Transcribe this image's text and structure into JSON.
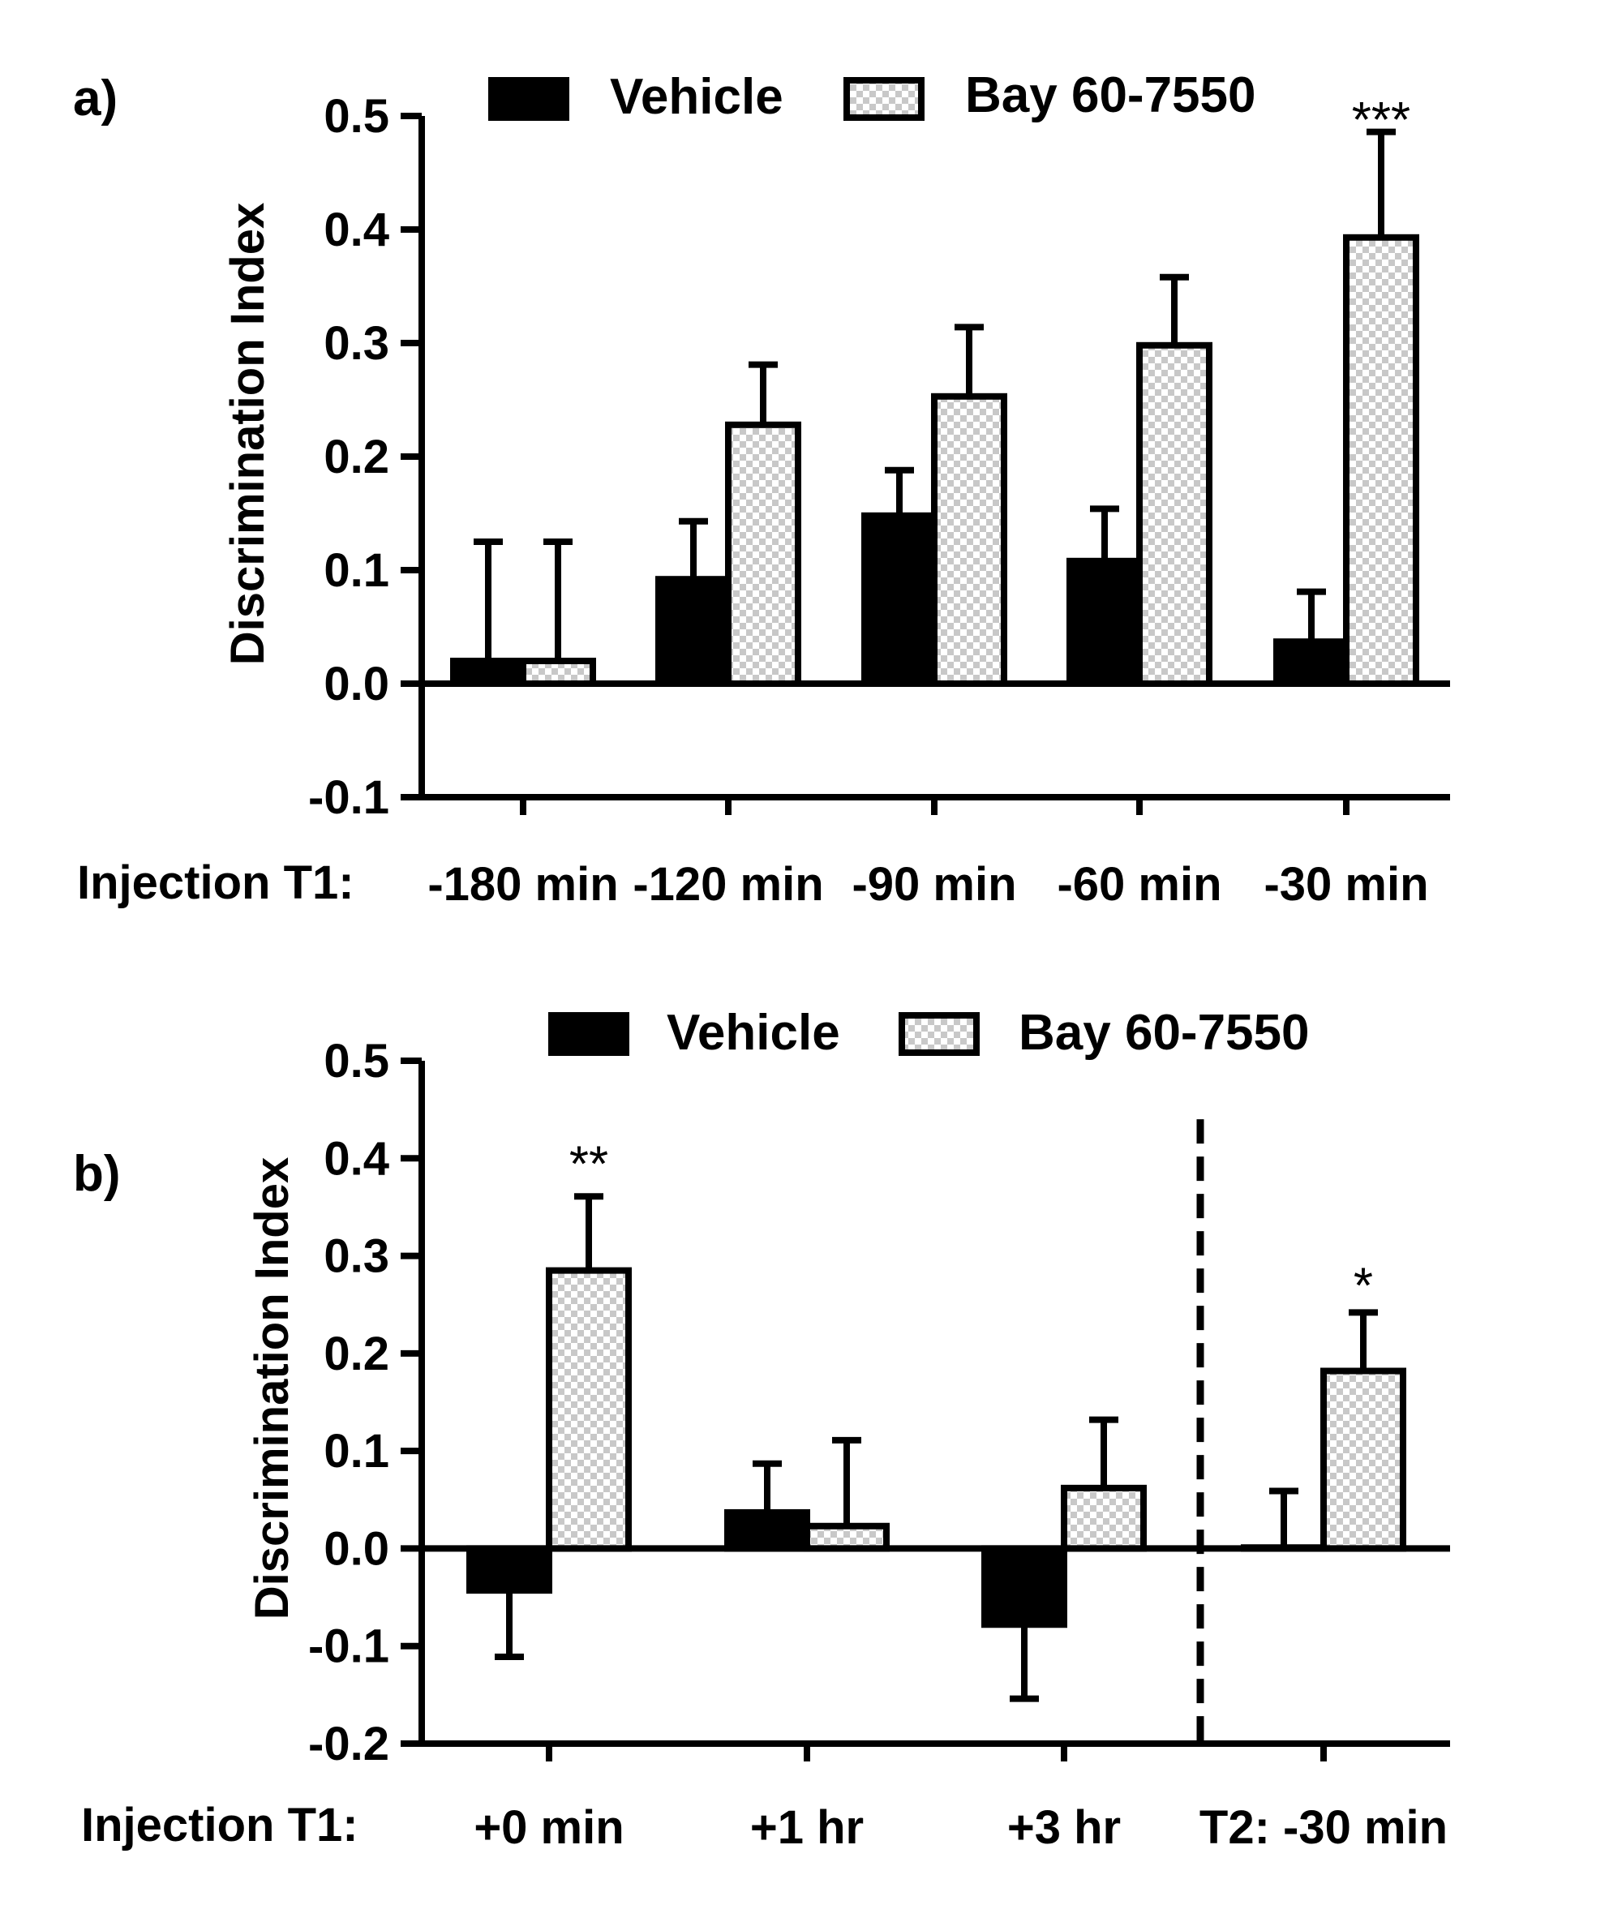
{
  "colors": {
    "vehicle": "#000000",
    "bay_light": "#c8c8c8",
    "bay_dark": "#ffffff",
    "stroke": "#000000"
  },
  "chart_data": [
    {
      "type": "bar",
      "panel_label": "a)",
      "ylabel": "Discrimination Index",
      "ylim": [
        -0.1,
        0.5
      ],
      "yticks": [
        "-0.1",
        "0.0",
        "0.1",
        "0.2",
        "0.3",
        "0.4",
        "0.5"
      ],
      "ytick_values": [
        -0.1,
        0.0,
        0.1,
        0.2,
        0.3,
        0.4,
        0.5
      ],
      "row_label": "Injection T1:",
      "categories": [
        "-180 min",
        "-120 min",
        "-90 min",
        "-60 min",
        "-30 min"
      ],
      "legend": [
        "Vehicle",
        "Bay 60-7550"
      ],
      "legend_position": "top",
      "series": [
        {
          "name": "Vehicle",
          "values": [
            0.02,
            0.092,
            0.148,
            0.108,
            0.037
          ],
          "errors": [
            0.105,
            0.051,
            0.04,
            0.046,
            0.044
          ]
        },
        {
          "name": "Bay 60-7550",
          "values": [
            0.02,
            0.228,
            0.253,
            0.298,
            0.393
          ],
          "errors": [
            0.105,
            0.053,
            0.061,
            0.06,
            0.093
          ]
        }
      ],
      "annotations": [
        {
          "text": "***",
          "category_index": 4,
          "y": 0.51
        }
      ]
    },
    {
      "type": "bar",
      "panel_label": "b)",
      "ylabel": "Discrimination Index",
      "ylim": [
        -0.2,
        0.5
      ],
      "yticks": [
        "-0.2",
        "-0.1",
        "0.0",
        "0.1",
        "0.2",
        "0.3",
        "0.4",
        "0.5"
      ],
      "ytick_values": [
        -0.2,
        -0.1,
        0.0,
        0.1,
        0.2,
        0.3,
        0.4,
        0.5
      ],
      "row_label": "Injection T1:",
      "categories": [
        "+0 min",
        "+1 hr",
        "+3 hr",
        "T2: -30 min"
      ],
      "legend": [
        "Vehicle",
        "Bay 60-7550"
      ],
      "legend_position": "top",
      "divider_between": [
        2,
        3
      ],
      "series": [
        {
          "name": "Vehicle",
          "values": [
            -0.043,
            0.037,
            -0.078,
            0.001
          ],
          "errors": [
            0.068,
            0.05,
            0.076,
            0.058
          ]
        },
        {
          "name": "Bay 60-7550",
          "values": [
            0.285,
            0.023,
            0.062,
            0.182
          ],
          "errors": [
            0.076,
            0.088,
            0.07,
            0.06
          ]
        }
      ],
      "annotations": [
        {
          "text": "**",
          "category_index": 0,
          "y": 0.41
        },
        {
          "text": "*",
          "category_index": 3,
          "y": 0.285
        }
      ]
    }
  ]
}
